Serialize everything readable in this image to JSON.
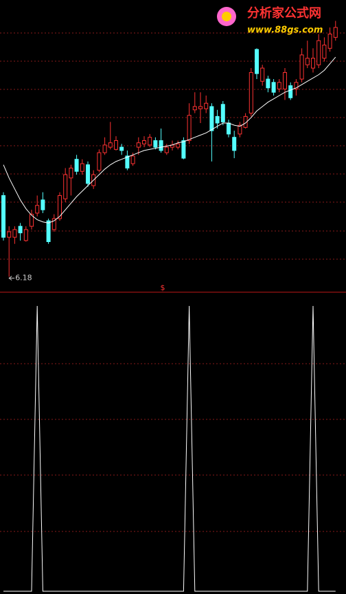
{
  "logo": {
    "name": "分析家公式网",
    "url": "www.88gs.com"
  },
  "chart_data": [
    {
      "type": "candlestick",
      "marker": "$",
      "up_color": "#ff3232",
      "down_color": "#54ffff",
      "ma_color": "#ffffff",
      "ylim": [
        6.04,
        8.7
      ],
      "open": [
        6.92,
        6.54,
        6.54,
        6.64,
        6.51,
        6.64,
        6.76,
        6.88,
        6.69,
        6.61,
        6.71,
        6.89,
        7.08,
        7.25,
        7.14,
        7.2,
        7.01,
        7.15,
        7.31,
        7.36,
        7.34,
        7.36,
        7.28,
        7.21,
        7.36,
        7.39,
        7.38,
        7.42,
        7.42,
        7.31,
        7.36,
        7.36,
        7.42,
        7.42,
        7.7,
        7.71,
        7.71,
        7.73,
        7.64,
        7.75,
        7.58,
        7.45,
        7.48,
        7.54,
        7.67,
        8.25,
        7.96,
        7.98,
        7.95,
        7.89,
        7.89,
        7.92,
        7.89,
        7.98,
        8.11,
        8.08,
        8.11,
        8.17,
        8.26,
        8.36
      ],
      "high": [
        6.95,
        6.64,
        6.64,
        6.67,
        6.64,
        6.79,
        6.92,
        6.95,
        6.71,
        6.75,
        6.95,
        7.17,
        7.2,
        7.29,
        7.25,
        7.23,
        7.15,
        7.34,
        7.45,
        7.59,
        7.46,
        7.39,
        7.33,
        7.31,
        7.45,
        7.46,
        7.48,
        7.45,
        7.53,
        7.39,
        7.42,
        7.42,
        7.45,
        7.76,
        7.86,
        7.86,
        7.83,
        7.76,
        7.7,
        7.78,
        7.61,
        7.51,
        7.59,
        7.67,
        8.08,
        8.26,
        8.11,
        8.01,
        7.98,
        7.98,
        8.08,
        7.95,
        7.98,
        8.26,
        8.33,
        8.26,
        8.39,
        8.36,
        8.45,
        8.51
      ],
      "low": [
        6.51,
        6.18,
        6.48,
        6.51,
        6.5,
        6.61,
        6.73,
        6.76,
        6.48,
        6.59,
        6.69,
        6.86,
        6.92,
        7.11,
        7.11,
        7.0,
        6.98,
        7.13,
        7.29,
        7.34,
        7.33,
        7.29,
        7.15,
        7.19,
        7.29,
        7.36,
        7.36,
        7.34,
        7.31,
        7.29,
        7.33,
        7.34,
        7.25,
        7.39,
        7.67,
        7.58,
        7.67,
        7.23,
        7.53,
        7.56,
        7.45,
        7.26,
        7.45,
        7.53,
        7.64,
        7.98,
        7.92,
        7.86,
        7.83,
        7.86,
        7.79,
        7.79,
        7.83,
        7.95,
        8.08,
        8.04,
        8.08,
        8.14,
        8.23,
        8.33
      ],
      "close": [
        6.54,
        6.59,
        6.61,
        6.58,
        6.61,
        6.75,
        6.83,
        6.79,
        6.5,
        6.71,
        6.92,
        7.11,
        7.17,
        7.14,
        7.21,
        7.03,
        7.11,
        7.31,
        7.38,
        7.4,
        7.42,
        7.33,
        7.17,
        7.28,
        7.4,
        7.42,
        7.45,
        7.36,
        7.33,
        7.36,
        7.38,
        7.39,
        7.26,
        7.65,
        7.73,
        7.73,
        7.76,
        7.51,
        7.58,
        7.59,
        7.48,
        7.33,
        7.56,
        7.64,
        8.04,
        8.03,
        8.08,
        7.9,
        7.86,
        7.95,
        8.04,
        7.81,
        7.95,
        8.2,
        8.17,
        8.17,
        8.33,
        8.29,
        8.39,
        8.45
      ],
      "ma": [
        7.2,
        7.08,
        6.98,
        6.88,
        6.8,
        6.74,
        6.7,
        6.68,
        6.67,
        6.69,
        6.73,
        6.79,
        6.85,
        6.91,
        6.96,
        7.01,
        7.06,
        7.11,
        7.16,
        7.2,
        7.23,
        7.25,
        7.27,
        7.29,
        7.31,
        7.33,
        7.34,
        7.35,
        7.36,
        7.37,
        7.38,
        7.4,
        7.41,
        7.43,
        7.45,
        7.47,
        7.49,
        7.52,
        7.55,
        7.58,
        7.58,
        7.56,
        7.55,
        7.58,
        7.63,
        7.69,
        7.73,
        7.77,
        7.8,
        7.83,
        7.86,
        7.88,
        7.9,
        7.93,
        7.96,
        7.99,
        8.02,
        8.06,
        8.12,
        8.18
      ]
    },
    {
      "type": "line",
      "color": "#ffffff",
      "ylim": [
        0,
        1
      ],
      "values": [
        0,
        0,
        0,
        0,
        0,
        0,
        1,
        0,
        0,
        0,
        0,
        0,
        0,
        0,
        0,
        0,
        0,
        0,
        0,
        0,
        0,
        0,
        0,
        0,
        0,
        0,
        0,
        0,
        0,
        0,
        0,
        0,
        0,
        1,
        0,
        0,
        0,
        0,
        0,
        0,
        0,
        0,
        0,
        0,
        0,
        0,
        0,
        0,
        0,
        0,
        0,
        0,
        0,
        0,
        0,
        1,
        0,
        0,
        0,
        0
      ]
    }
  ]
}
